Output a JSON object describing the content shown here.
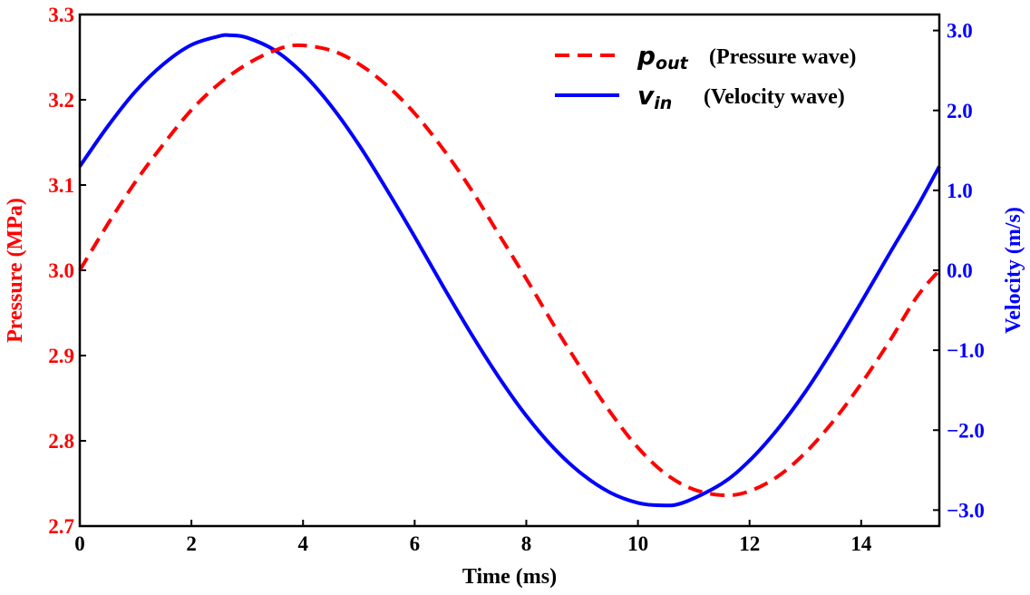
{
  "chart_data": {
    "type": "line",
    "xlabel": "Time (ms)",
    "ylabel_left": "Pressure (MPa)",
    "ylabel_right": "Velocity (m/s)",
    "xlim": [
      0,
      15.4
    ],
    "ylim_left": [
      2.7,
      3.3
    ],
    "ylim_right": [
      -3.2,
      3.2
    ],
    "x_ticks": [
      "0",
      "2",
      "4",
      "6",
      "8",
      "10",
      "12",
      "14"
    ],
    "y_left_ticks": [
      "2.7",
      "2.8",
      "2.9",
      "3.0",
      "3.1",
      "3.2",
      "3.3"
    ],
    "y_right_ticks": [
      "-3.0",
      "-2.0",
      "-1.0",
      "0.0",
      "1.0",
      "2.0",
      "3.0"
    ],
    "colors": {
      "pressure": "#ff0000",
      "velocity": "#0000ff",
      "axis": "#000000"
    },
    "series": [
      {
        "name": "p_out (Pressure wave)",
        "axis": "left",
        "style": "dashed",
        "color": "#ff0000",
        "x": [
          0.0,
          0.5,
          1.0,
          1.5,
          2.0,
          2.5,
          3.0,
          3.5,
          3.9,
          4.5,
          5.0,
          5.5,
          6.0,
          6.5,
          7.0,
          7.5,
          8.0,
          8.5,
          9.0,
          9.5,
          10.0,
          10.5,
          11.0,
          11.55,
          12.0,
          12.5,
          13.0,
          13.5,
          14.0,
          14.5,
          15.0,
          15.4
        ],
        "values": [
          3.0,
          3.054,
          3.104,
          3.148,
          3.188,
          3.219,
          3.242,
          3.258,
          3.264,
          3.258,
          3.242,
          3.217,
          3.184,
          3.143,
          3.096,
          3.043,
          2.99,
          2.935,
          2.883,
          2.834,
          2.792,
          2.761,
          2.743,
          2.736,
          2.741,
          2.758,
          2.786,
          2.823,
          2.867,
          2.916,
          2.969,
          3.0
        ]
      },
      {
        "name": "v_in (Velocity wave)",
        "axis": "right",
        "style": "solid",
        "color": "#0000ff",
        "x": [
          0.0,
          0.5,
          1.0,
          1.5,
          2.0,
          2.5,
          2.7,
          3.0,
          3.5,
          4.0,
          4.5,
          5.0,
          5.5,
          6.0,
          6.5,
          7.0,
          7.5,
          8.0,
          8.5,
          9.0,
          9.5,
          10.0,
          10.4,
          10.8,
          11.5,
          12.0,
          12.5,
          13.0,
          13.5,
          14.0,
          14.5,
          15.0,
          15.4
        ],
        "values": [
          1.3,
          1.8,
          2.24,
          2.58,
          2.82,
          2.93,
          2.94,
          2.91,
          2.75,
          2.46,
          2.06,
          1.57,
          1.01,
          0.42,
          -0.19,
          -0.78,
          -1.33,
          -1.82,
          -2.23,
          -2.55,
          -2.78,
          -2.91,
          -2.94,
          -2.91,
          -2.67,
          -2.38,
          -1.99,
          -1.52,
          -0.98,
          -0.4,
          0.2,
          0.79,
          1.3
        ]
      }
    ],
    "legend": [
      {
        "symbol": "p",
        "subscript": "out",
        "label": "(Pressure wave)"
      },
      {
        "symbol": "v",
        "subscript": "in",
        "label": "(Velocity wave)"
      }
    ],
    "legend_position": "top-right"
  }
}
